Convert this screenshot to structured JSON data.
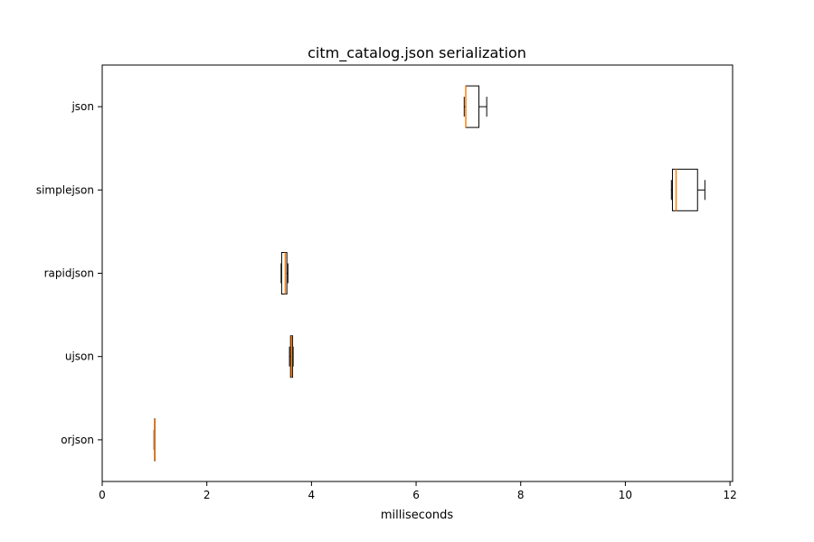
{
  "chart_data": {
    "type": "boxplot",
    "orientation": "horizontal",
    "title": "citm_catalog.json serialization",
    "xlabel": "milliseconds",
    "ylabel": "",
    "xlim": [
      0,
      12.05
    ],
    "xticks": [
      0,
      2,
      4,
      6,
      8,
      10,
      12
    ],
    "grid": false,
    "categories": [
      "json",
      "simplejson",
      "rapidjson",
      "ujson",
      "orjson"
    ],
    "series": [
      {
        "label": "json",
        "whisker_low": 6.92,
        "q1": 6.95,
        "median": 6.95,
        "q3": 7.2,
        "whisker_high": 7.35
      },
      {
        "label": "simplejson",
        "whisker_low": 10.88,
        "q1": 10.9,
        "median": 10.97,
        "q3": 11.38,
        "whisker_high": 11.52
      },
      {
        "label": "rapidjson",
        "whisker_low": 3.42,
        "q1": 3.43,
        "median": 3.5,
        "q3": 3.53,
        "whisker_high": 3.55
      },
      {
        "label": "ujson",
        "whisker_low": 3.58,
        "q1": 3.6,
        "median": 3.62,
        "q3": 3.64,
        "whisker_high": 3.65
      },
      {
        "label": "orjson",
        "whisker_low": 0.99,
        "q1": 1.0,
        "median": 1.0,
        "q3": 1.0,
        "whisker_high": 1.0
      }
    ],
    "colors": {
      "box": "#000000",
      "median": "#ff7f0e",
      "axes": "#000000"
    }
  }
}
